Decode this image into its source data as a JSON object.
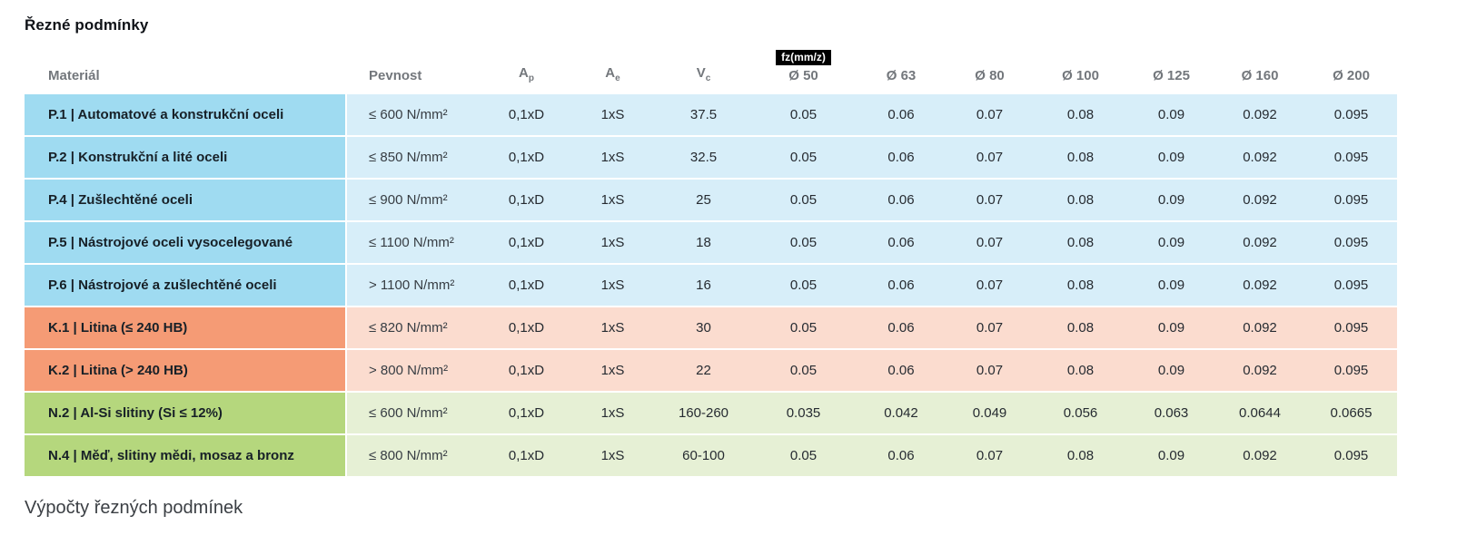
{
  "page": {
    "title": "Řezné podmínky",
    "subtitle": "Výpočty řezných podmínek"
  },
  "table": {
    "fz_badge": "fz(mm/z)",
    "columns": [
      {
        "key": "material",
        "label": "Materiál",
        "align": "left"
      },
      {
        "key": "pevnost",
        "label": "Pevnost",
        "align": "left"
      },
      {
        "key": "ap",
        "label": "A",
        "sub": "p"
      },
      {
        "key": "ae",
        "label": "A",
        "sub": "e"
      },
      {
        "key": "vc",
        "label": "V",
        "sub": "c"
      },
      {
        "key": "d50",
        "label": "Ø 50",
        "badge": true
      },
      {
        "key": "d63",
        "label": "Ø 63"
      },
      {
        "key": "d80",
        "label": "Ø 80"
      },
      {
        "key": "d100",
        "label": "Ø 100"
      },
      {
        "key": "d125",
        "label": "Ø 125"
      },
      {
        "key": "d160",
        "label": "Ø 160"
      },
      {
        "key": "d200",
        "label": "Ø 200"
      }
    ],
    "group_colors": {
      "steel_header": "#9fdbf1",
      "steel_row": "#d7eef9",
      "cast_header": "#f59b75",
      "cast_row": "#fbdccf",
      "alu_header": "#b5d77d",
      "alu_row": "#e6f0d5",
      "badge_bg": "#000000",
      "badge_text": "#ffffff"
    },
    "rows": [
      {
        "group": "steel",
        "material": "P.1 | Automatové a konstrukční oceli",
        "pevnost": "≤ 600 N/mm²",
        "ap": "0,1xD",
        "ae": "1xS",
        "vc": "37.5",
        "fz": [
          "0.05",
          "0.06",
          "0.07",
          "0.08",
          "0.09",
          "0.092",
          "0.095"
        ]
      },
      {
        "group": "steel",
        "material": "P.2 | Konstrukční a lité oceli",
        "pevnost": "≤ 850 N/mm²",
        "ap": "0,1xD",
        "ae": "1xS",
        "vc": "32.5",
        "fz": [
          "0.05",
          "0.06",
          "0.07",
          "0.08",
          "0.09",
          "0.092",
          "0.095"
        ]
      },
      {
        "group": "steel",
        "material": "P.4 | Zušlechtěné oceli",
        "pevnost": "≤ 900 N/mm²",
        "ap": "0,1xD",
        "ae": "1xS",
        "vc": "25",
        "fz": [
          "0.05",
          "0.06",
          "0.07",
          "0.08",
          "0.09",
          "0.092",
          "0.095"
        ]
      },
      {
        "group": "steel",
        "material": "P.5 | Nástrojové oceli vysocelegované",
        "pevnost": "≤ 1100 N/mm²",
        "ap": "0,1xD",
        "ae": "1xS",
        "vc": "18",
        "fz": [
          "0.05",
          "0.06",
          "0.07",
          "0.08",
          "0.09",
          "0.092",
          "0.095"
        ]
      },
      {
        "group": "steel",
        "material": "P.6 | Nástrojové a zušlechtěné oceli",
        "pevnost": "> 1100 N/mm²",
        "ap": "0,1xD",
        "ae": "1xS",
        "vc": "16",
        "fz": [
          "0.05",
          "0.06",
          "0.07",
          "0.08",
          "0.09",
          "0.092",
          "0.095"
        ]
      },
      {
        "group": "cast",
        "material": "K.1 | Litina (≤ 240 HB)",
        "pevnost": "≤ 820 N/mm²",
        "ap": "0,1xD",
        "ae": "1xS",
        "vc": "30",
        "fz": [
          "0.05",
          "0.06",
          "0.07",
          "0.08",
          "0.09",
          "0.092",
          "0.095"
        ]
      },
      {
        "group": "cast",
        "material": "K.2 | Litina (> 240 HB)",
        "pevnost": "> 800 N/mm²",
        "ap": "0,1xD",
        "ae": "1xS",
        "vc": "22",
        "fz": [
          "0.05",
          "0.06",
          "0.07",
          "0.08",
          "0.09",
          "0.092",
          "0.095"
        ]
      },
      {
        "group": "alu",
        "material": "N.2 | Al-Si slitiny (Si ≤ 12%)",
        "pevnost": "≤ 600 N/mm²",
        "ap": "0,1xD",
        "ae": "1xS",
        "vc": "160-260",
        "fz": [
          "0.035",
          "0.042",
          "0.049",
          "0.056",
          "0.063",
          "0.0644",
          "0.0665"
        ]
      },
      {
        "group": "alu",
        "material": "N.4 | Měď, slitiny mědi, mosaz a bronz",
        "pevnost": "≤ 800 N/mm²",
        "ap": "0,1xD",
        "ae": "1xS",
        "vc": "60-100",
        "fz": [
          "0.05",
          "0.06",
          "0.07",
          "0.08",
          "0.09",
          "0.092",
          "0.095"
        ]
      }
    ]
  }
}
